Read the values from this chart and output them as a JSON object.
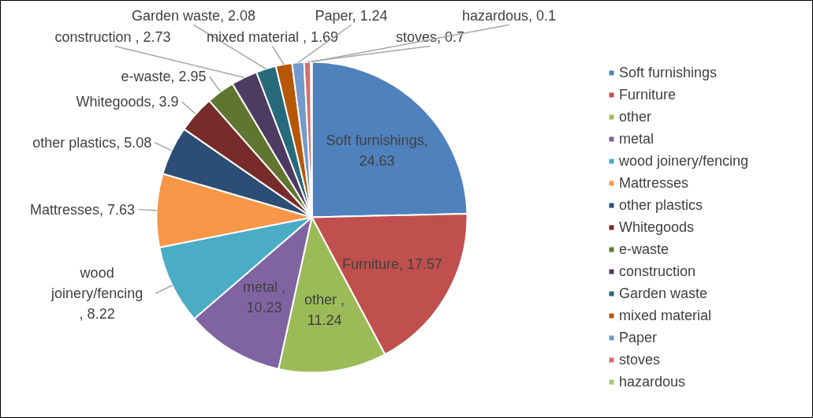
{
  "chart_data": {
    "type": "pie",
    "categories": [
      "Soft furnishings",
      "Furniture",
      "other",
      "metal",
      "wood joinery/fencing",
      "Mattresses",
      "other plastics",
      "Whitegoods",
      "e-waste",
      "construction",
      "Garden waste",
      "mixed material",
      "Paper",
      "stoves",
      "hazardous"
    ],
    "values": [
      24.63,
      17.57,
      11.24,
      10.23,
      8.22,
      7.63,
      5.08,
      3.9,
      2.95,
      2.73,
      2.08,
      1.69,
      1.24,
      0.7,
      0.1
    ],
    "colors": [
      "#4f81bd",
      "#c0504d",
      "#9bbb59",
      "#8064a2",
      "#4bacc6",
      "#f79646",
      "#2c4d75",
      "#772c2a",
      "#5f7530",
      "#4d3b62",
      "#276a7c",
      "#b65708",
      "#729aca",
      "#d4706f",
      "#a9c47f"
    ],
    "value_labels": [
      "Soft furnishings, 24.63",
      "Furniture, 17.57",
      "other , 11.24",
      "metal , 10.23",
      "wood joinery/fencing , 8.22",
      "Mattresses, 7.63",
      "other plastics, 5.08",
      "Whitegoods, 3.9",
      "e-waste, 2.95",
      "construction  , 2.73",
      "Garden waste, 2.08",
      "mixed material , 1.69",
      "Paper, 1.24",
      "stoves, 0.7",
      "hazardous, 0.1"
    ],
    "legend": "right"
  }
}
